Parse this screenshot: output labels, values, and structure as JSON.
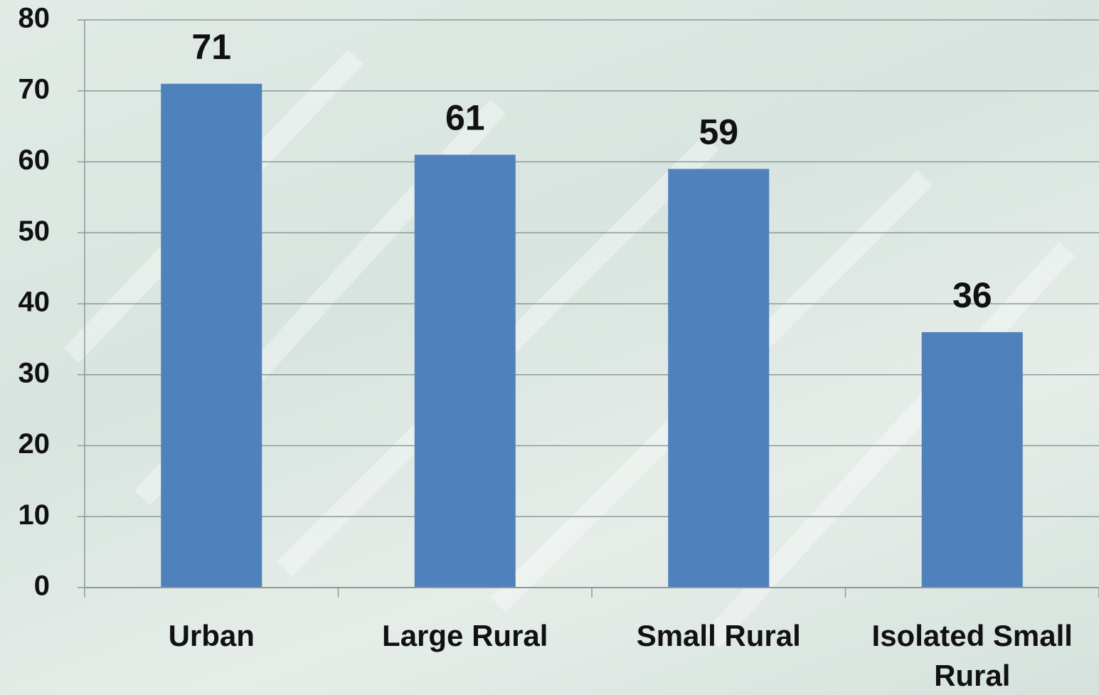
{
  "chart_data": {
    "type": "bar",
    "categories": [
      "Urban",
      "Large Rural",
      "Small Rural",
      "Isolated Small Rural"
    ],
    "values": [
      71,
      61,
      59,
      36
    ],
    "color": "#4f81bd",
    "ylim": [
      0,
      80
    ],
    "yticks": [
      0,
      10,
      20,
      30,
      40,
      50,
      60,
      70,
      80
    ],
    "grid": true
  }
}
